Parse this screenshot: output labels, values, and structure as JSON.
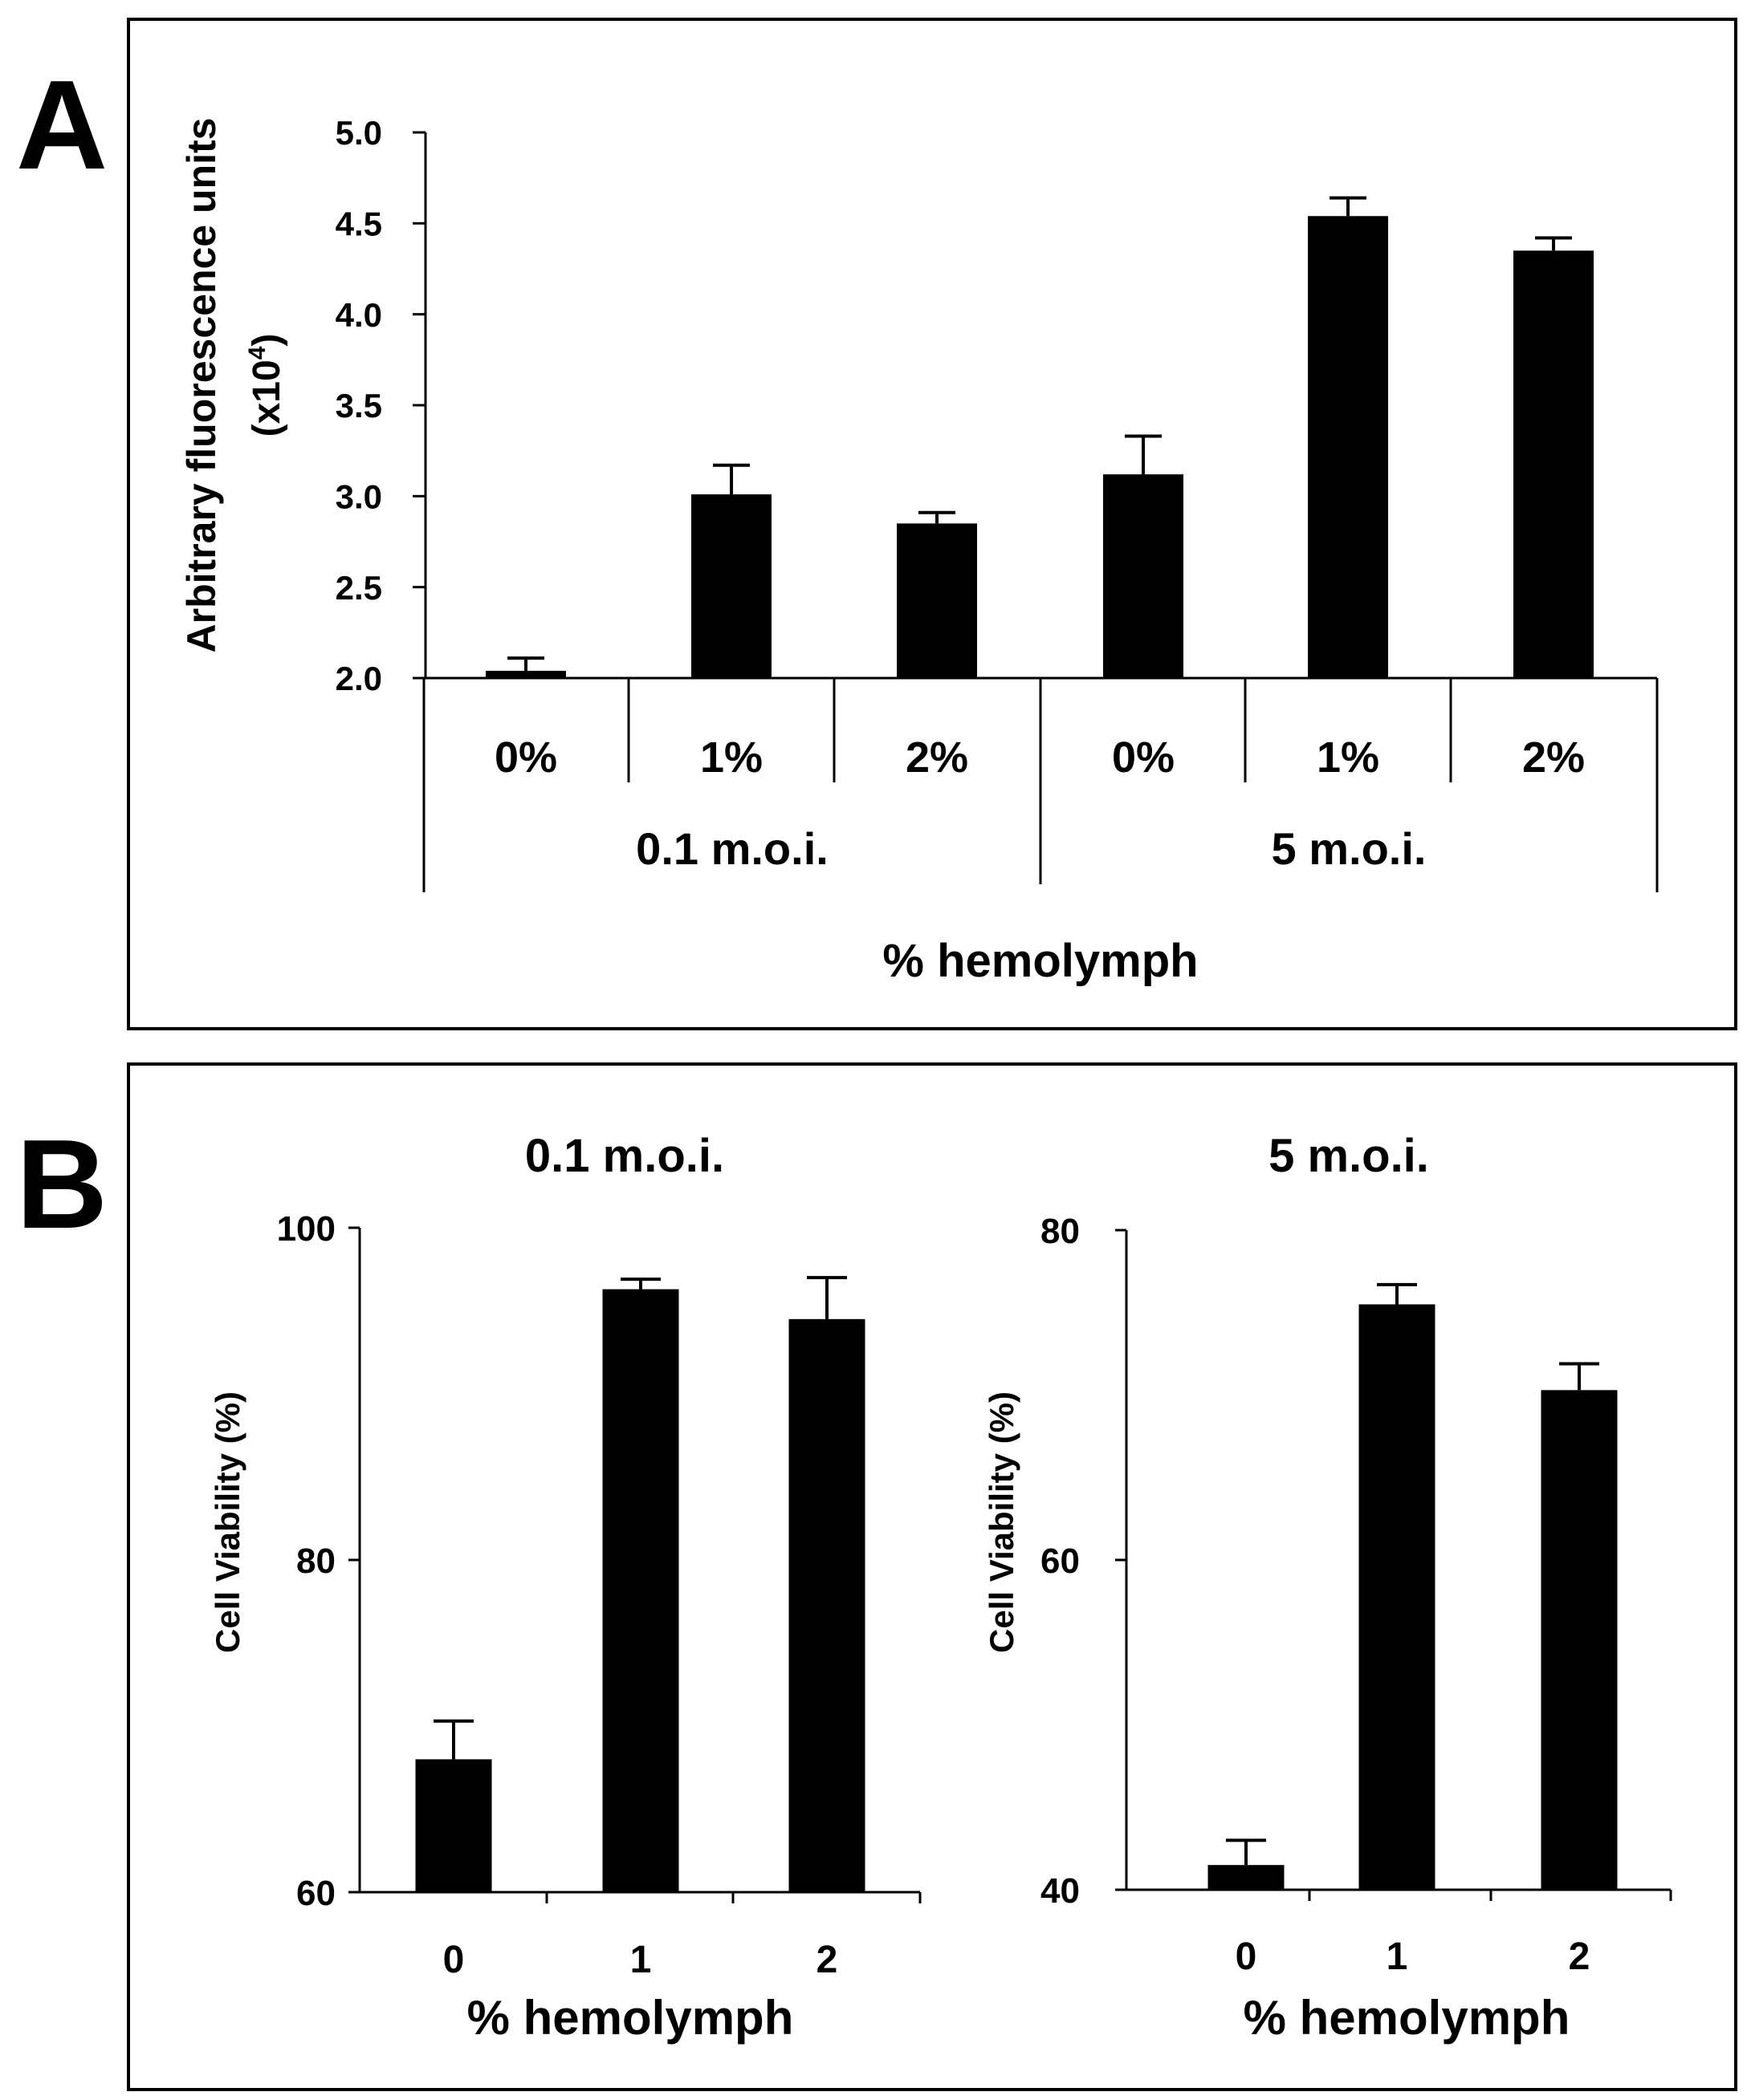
{
  "panel_a": {
    "letter": "A",
    "ylabel_line1": "Arbitrary fluorescence units",
    "ylabel_line2_prefix": "(x10",
    "ylabel_line2_sup": "4",
    "ylabel_line2_suffix": ")",
    "xlabel": "% hemolymph",
    "group_labels": [
      "0.1 m.o.i.",
      "5 m.o.i."
    ]
  },
  "panel_b": {
    "letter": "B",
    "ylabel": "Cell Viability (%)"
  },
  "chart_data": [
    {
      "type": "bar",
      "panel": "A",
      "categories": [
        "0%",
        "1%",
        "2%",
        "0%",
        "1%",
        "2%"
      ],
      "groups": [
        "0.1 m.o.i.",
        "0.1 m.o.i.",
        "0.1 m.o.i.",
        "5 m.o.i.",
        "5 m.o.i.",
        "5 m.o.i."
      ],
      "values": [
        2.04,
        3.01,
        2.85,
        3.12,
        4.54,
        4.35
      ],
      "errors": [
        0.07,
        0.16,
        0.06,
        0.21,
        0.1,
        0.07
      ],
      "ylim": [
        2.0,
        5.0
      ],
      "yticks": [
        "2.0",
        "2.5",
        "3.0",
        "3.5",
        "4.0",
        "4.5",
        "5.0"
      ],
      "ytick_values": [
        2.0,
        2.5,
        3.0,
        3.5,
        4.0,
        4.5,
        5.0
      ],
      "xlabel": "% hemolymph",
      "ylabel": "Arbitrary fluorescence units (x10^4)",
      "color": "#000000"
    },
    {
      "type": "bar",
      "panel": "B-left",
      "title": "0.1 m.o.i.",
      "categories": [
        "0",
        "1",
        "2"
      ],
      "values": [
        68,
        96.3,
        94.5
      ],
      "errors": [
        2.3,
        0.6,
        2.5
      ],
      "ylim": [
        60,
        100
      ],
      "yticks": [
        "60",
        "80",
        "100"
      ],
      "ytick_values": [
        60,
        80,
        100
      ],
      "xlabel": "% hemolymph",
      "ylabel": "Cell Viability (%)",
      "color": "#000000"
    },
    {
      "type": "bar",
      "panel": "B-right",
      "title": "5 m.o.i.",
      "categories": [
        "0",
        "1",
        "2"
      ],
      "values": [
        41.5,
        75.5,
        70.3
      ],
      "errors": [
        1.5,
        1.2,
        1.6
      ],
      "ylim": [
        40,
        80
      ],
      "yticks": [
        "40",
        "60",
        "80"
      ],
      "ytick_values": [
        40,
        60,
        80
      ],
      "xlabel": "% hemolymph",
      "ylabel": "Cell Viability (%)",
      "color": "#000000"
    }
  ]
}
